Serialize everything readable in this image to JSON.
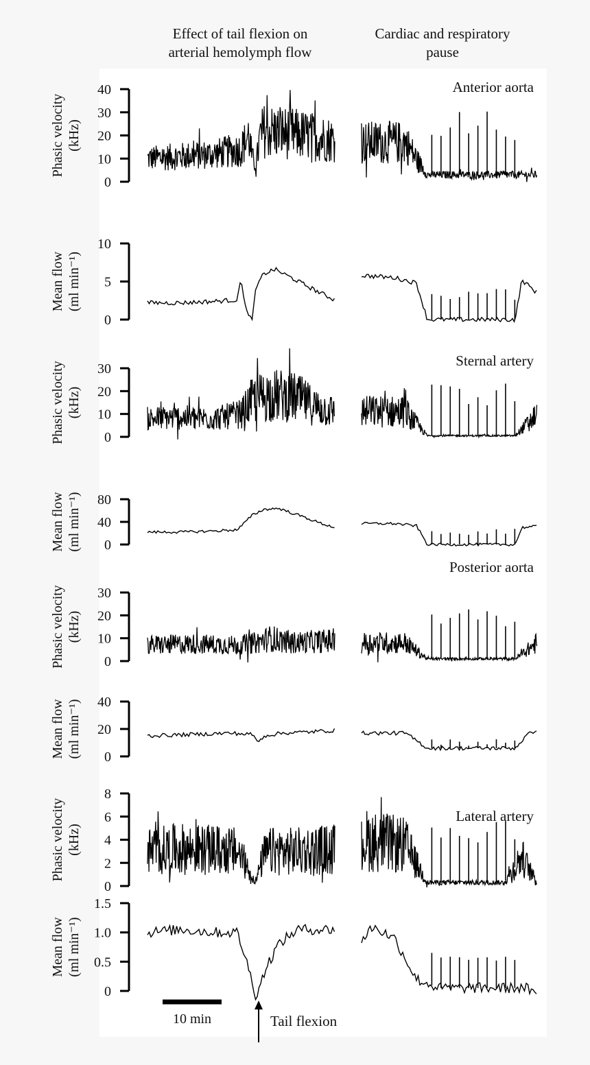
{
  "headings": {
    "left": "Effect of tail flexion on\narterial hemolymph flow",
    "right": "Cardiac and respiratory\npause"
  },
  "annotations": {
    "scale_bar": "10 min",
    "event": "Tail flexion"
  },
  "chart_data": [
    {
      "type": "line",
      "title": "Anterior aorta",
      "ylabel": [
        "Phasic velocity",
        "(kHz)"
      ],
      "ylim": [
        0,
        40
      ],
      "yticks": [
        0,
        10,
        20,
        30,
        40
      ],
      "color": "#000000",
      "series": [
        {
          "x": [
            0,
            9,
            18,
            25,
            27,
            28,
            29,
            30,
            31,
            38,
            50
          ],
          "y": [
            10,
            11,
            12,
            14,
            20,
            10,
            7,
            19,
            22,
            21,
            18
          ]
        },
        {
          "x": [
            0,
            2,
            3,
            8
          ],
          "y": [
            17,
            17,
            3,
            3
          ]
        }
      ]
    },
    {
      "type": "line",
      "ylabel": [
        "Mean flow",
        "(ml min⁻¹)"
      ],
      "ylim": [
        0,
        10
      ],
      "yticks": [
        0,
        5,
        10
      ],
      "color": "#000000",
      "series": [
        {
          "x": [
            0,
            9,
            18,
            24,
            25,
            26,
            27,
            28,
            29,
            31,
            34,
            38,
            43,
            47,
            50
          ],
          "y": [
            2.2,
            2.2,
            2.4,
            2.6,
            5.5,
            2,
            0.3,
            0.3,
            4.2,
            6,
            6.6,
            5.6,
            4.3,
            3.3,
            2.6
          ]
        },
        {
          "x": [
            0,
            1.5,
            2.5,
            3,
            7,
            7.3,
            8
          ],
          "y": [
            5.8,
            5.5,
            4.8,
            0,
            0,
            5.2,
            3.5
          ]
        }
      ]
    },
    {
      "type": "line",
      "title": "Sternal artery",
      "ylabel": [
        "Phasic velocity",
        "(kHz)"
      ],
      "ylim": [
        0,
        30
      ],
      "yticks": [
        0,
        10,
        20,
        30
      ],
      "color": "#000000",
      "series": [
        {
          "x": [
            0,
            9,
            18,
            25,
            28,
            32,
            36,
            40,
            45,
            50
          ],
          "y": [
            8,
            8.5,
            8,
            10,
            16,
            18,
            18,
            17,
            13,
            11
          ]
        },
        {
          "x": [
            0,
            2,
            3,
            7,
            8
          ],
          "y": [
            11,
            11,
            0.5,
            0.5,
            10
          ]
        }
      ]
    },
    {
      "type": "line",
      "ylabel": [
        "Mean flow",
        "(ml min⁻¹)"
      ],
      "ylim": [
        0,
        80
      ],
      "yticks": [
        0,
        40,
        80
      ],
      "color": "#000000",
      "series": [
        {
          "x": [
            0,
            9,
            18,
            24,
            28,
            31,
            35,
            38,
            42,
            46,
            50
          ],
          "y": [
            22,
            22,
            24,
            26,
            52,
            62,
            64,
            57,
            48,
            38,
            30
          ]
        },
        {
          "x": [
            0,
            1.5,
            2.5,
            3,
            7,
            7.3,
            8
          ],
          "y": [
            37,
            37,
            33,
            0,
            0,
            30,
            32
          ]
        }
      ]
    },
    {
      "type": "line",
      "title": "Posterior aorta",
      "ylabel": [
        "Phasic velocity",
        "(kHz)"
      ],
      "ylim": [
        0,
        30
      ],
      "yticks": [
        0,
        10,
        20,
        30
      ],
      "color": "#000000",
      "series": [
        {
          "x": [
            0,
            12,
            24,
            29,
            33,
            38,
            44,
            50
          ],
          "y": [
            7,
            7.5,
            7,
            8,
            10,
            8,
            8.5,
            9
          ]
        },
        {
          "x": [
            0,
            2,
            3,
            7,
            8
          ],
          "y": [
            8,
            8,
            1,
            1,
            8
          ]
        }
      ]
    },
    {
      "type": "line",
      "ylabel": [
        "Mean flow",
        "(ml min⁻¹)"
      ],
      "ylim": [
        0,
        40
      ],
      "yticks": [
        0,
        20,
        40
      ],
      "color": "#000000",
      "series": [
        {
          "x": [
            0,
            12,
            22,
            28,
            29,
            30,
            31,
            36,
            44,
            50
          ],
          "y": [
            15,
            16,
            17,
            16,
            12,
            11,
            15,
            17,
            18,
            19
          ]
        },
        {
          "x": [
            0,
            2,
            3,
            7,
            7.5,
            8
          ],
          "y": [
            17,
            17,
            6,
            6,
            15,
            20
          ]
        }
      ]
    },
    {
      "type": "line",
      "title": "Lateral artery",
      "ylabel": [
        "Phasic velocity",
        "(kHz)"
      ],
      "ylim": [
        0,
        8
      ],
      "yticks": [
        0,
        2,
        4,
        6,
        8
      ],
      "color": "#000000",
      "series": [
        {
          "x": [
            0,
            9,
            18,
            24,
            26,
            28,
            29,
            31,
            33,
            40,
            50
          ],
          "y": [
            3,
            3.2,
            3.1,
            3,
            2,
            0.7,
            0.5,
            2.6,
            3,
            3,
            3.2
          ]
        },
        {
          "x": [
            0,
            2,
            3,
            6.5,
            7.3,
            8
          ],
          "y": [
            4,
            3.5,
            0.3,
            0.3,
            2.5,
            0.3
          ]
        }
      ]
    },
    {
      "type": "line",
      "ylabel": [
        "Mean flow",
        "(ml min⁻¹)"
      ],
      "ylim": [
        0,
        1.5
      ],
      "yticks": [
        0,
        0.5,
        1.0,
        1.5
      ],
      "ytick_labels": [
        "0",
        "0.5",
        "1.0",
        "1.5"
      ],
      "color": "#000000",
      "series": [
        {
          "x": [
            0,
            9,
            18,
            24,
            26,
            28,
            29,
            30,
            32,
            35,
            40,
            50
          ],
          "y": [
            1,
            1.05,
            1,
            1,
            0.6,
            0.15,
            -0.1,
            0.1,
            0.45,
            0.8,
            1.05,
            1.05
          ]
        },
        {
          "x": [
            0,
            0.5,
            1.5,
            2.5,
            3.5,
            7.5,
            8
          ],
          "y": [
            0.85,
            1.1,
            0.9,
            0.2,
            0.05,
            0.05,
            -0.1
          ]
        }
      ]
    }
  ]
}
